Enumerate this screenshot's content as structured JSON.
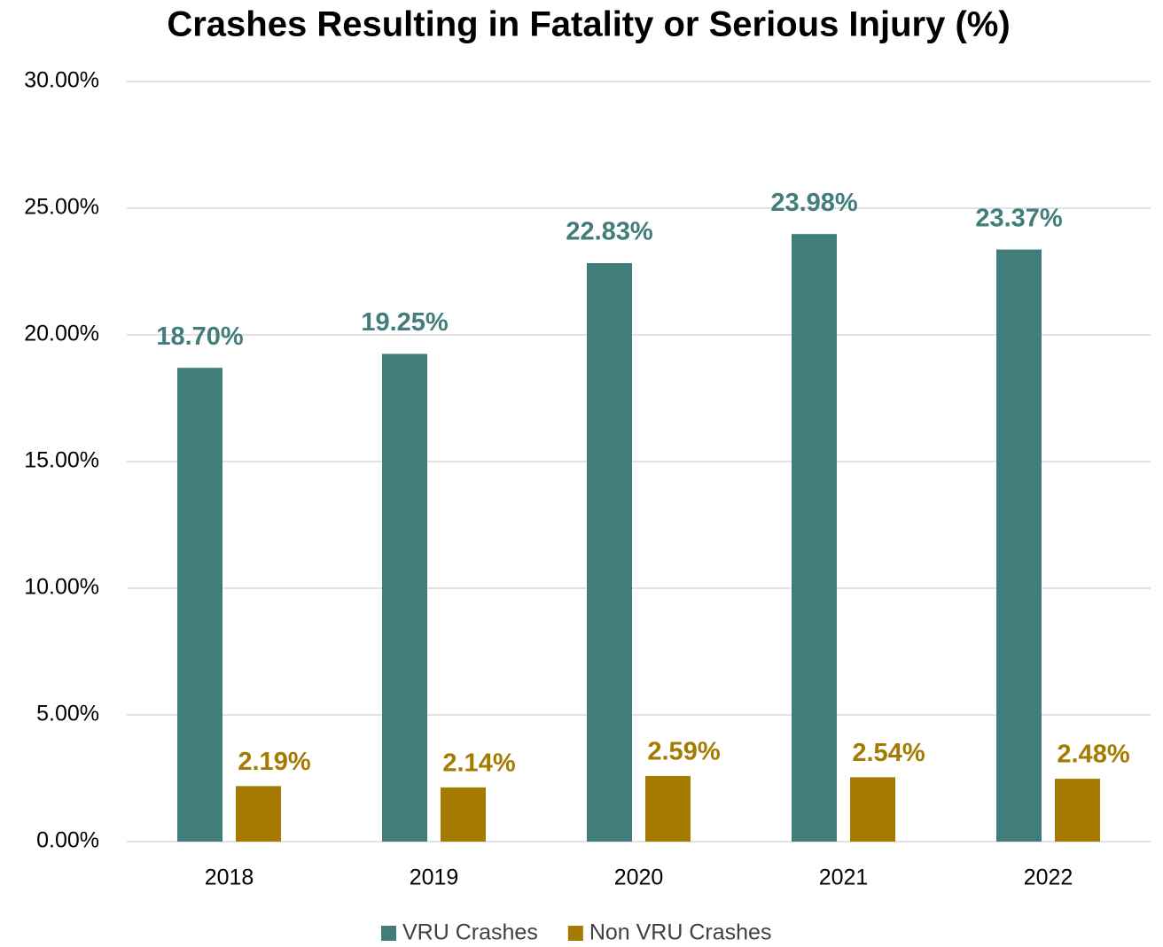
{
  "chart_data": {
    "type": "bar",
    "title": "Crashes Resulting in Fatality or Serious Injury (%)",
    "categories": [
      "2018",
      "2019",
      "2020",
      "2021",
      "2022"
    ],
    "series": [
      {
        "name": "VRU Crashes",
        "color": "#417d7a",
        "values": [
          18.7,
          19.25,
          22.83,
          23.98,
          23.37
        ],
        "value_labels": [
          "18.70%",
          "19.25%",
          "22.83%",
          "23.98%",
          "23.37%"
        ]
      },
      {
        "name": "Non VRU Crashes",
        "color": "#a57a00",
        "values": [
          2.19,
          2.14,
          2.59,
          2.54,
          2.48
        ],
        "value_labels": [
          "2.19%",
          "2.14%",
          "2.59%",
          "2.54%",
          "2.48%"
        ]
      }
    ],
    "ylim": [
      0,
      30
    ],
    "yticks": [
      {
        "value": 0,
        "label": "0.00%"
      },
      {
        "value": 5,
        "label": "5.00%"
      },
      {
        "value": 10,
        "label": "10.00%"
      },
      {
        "value": 15,
        "label": "15.00%"
      },
      {
        "value": 20,
        "label": "20.00%"
      },
      {
        "value": 25,
        "label": "25.00%"
      },
      {
        "value": 30,
        "label": "30.00%"
      }
    ],
    "grid": true,
    "legend": "bottom"
  }
}
